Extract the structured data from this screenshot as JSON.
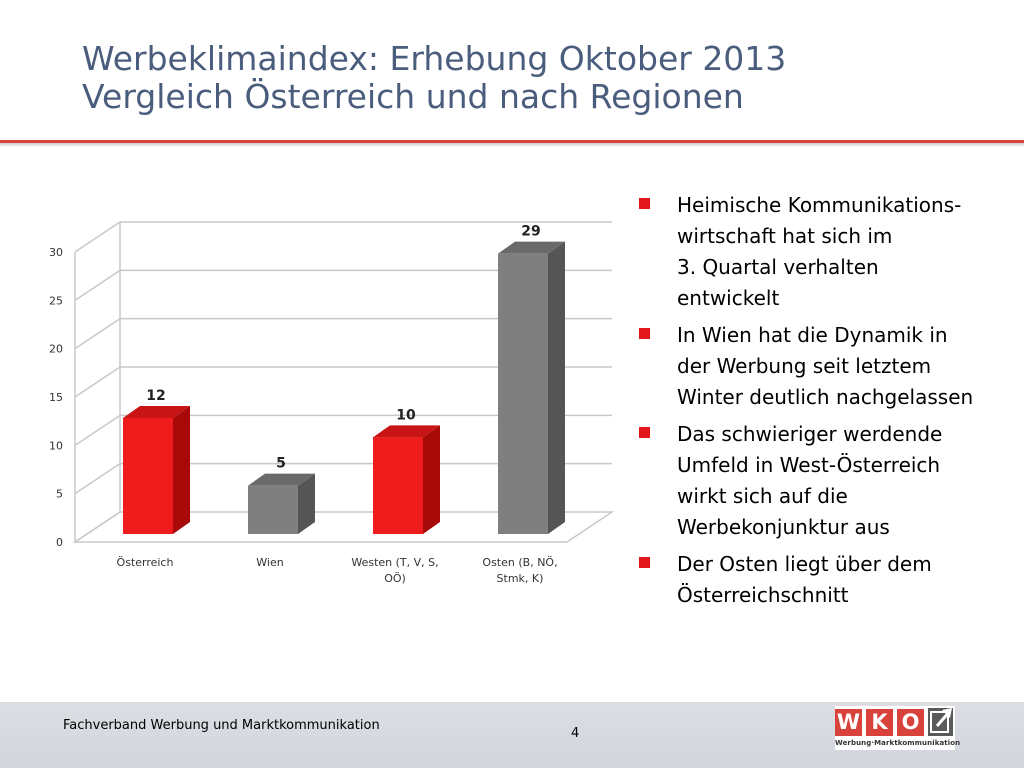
{
  "slide": {
    "title_line1": "Werbeklimaindex: Erhebung Oktober 2013",
    "title_line2": "Vergleich Österreich und nach Regionen",
    "page_number": "4"
  },
  "colors": {
    "accent_red": "#e3151d",
    "bar_red": "#ee1c1c",
    "bar_gray": "#7f7f7f",
    "title_blue": "#4a5d7c"
  },
  "chart_data": {
    "type": "bar",
    "style": "3d-column",
    "categories": [
      "Österreich",
      "Wien",
      "Westen (T, V, S, OÖ)",
      "Osten (B, NÖ, Stmk, K)"
    ],
    "category_labels": [
      [
        "Österreich"
      ],
      [
        "Wien"
      ],
      [
        "Westen (T, V, S,",
        "OÖ)"
      ],
      [
        "Osten (B, NÖ,",
        "Stmk, K)"
      ]
    ],
    "values": [
      12,
      5,
      10,
      29
    ],
    "bar_colors": [
      "red",
      "gray",
      "red",
      "gray"
    ],
    "data_labels": [
      "12",
      "5",
      "10",
      "29"
    ],
    "ylim": [
      0,
      30
    ],
    "yticks": [
      0,
      5,
      10,
      15,
      20,
      25,
      30
    ],
    "ytick_labels": [
      "0",
      "5",
      "10",
      "15",
      "20",
      "25",
      "30"
    ],
    "grid": true,
    "legend": "none",
    "title": "",
    "xlabel": "",
    "ylabel": ""
  },
  "bullets": [
    {
      "lines": [
        "Heimische Kommunikations-",
        "wirtschaft hat sich im",
        "3. Quartal verhalten",
        "entwickelt"
      ]
    },
    {
      "lines": [
        "In Wien hat die Dynamik in",
        "der Werbung seit letztem",
        "Winter deutlich nachgelassen"
      ]
    },
    {
      "lines": [
        "Das schwieriger werdende",
        "Umfeld in West-Österreich",
        "wirkt sich auf die",
        "Werbekonjunktur aus"
      ]
    },
    {
      "lines": [
        "Der Osten liegt über dem",
        "Österreichschnitt"
      ]
    }
  ],
  "footer": {
    "organization": "Fachverband Werbung und Marktkommunikation"
  },
  "logo": {
    "letters": [
      "W",
      "K",
      "O"
    ],
    "tagline": "Werbung·Marktkommunikation",
    "icon": "arrow-up-right-icon"
  }
}
